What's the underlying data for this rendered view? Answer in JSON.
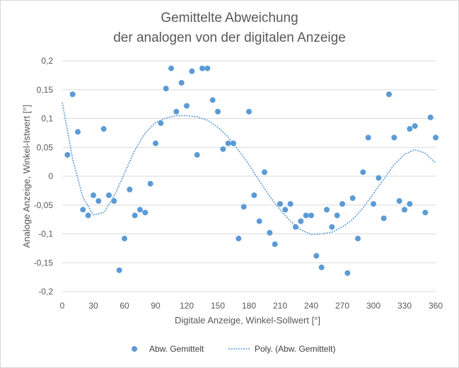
{
  "chart_data": {
    "type": "scatter",
    "title_line1": "Gemittelte Abweichung",
    "title_line2": "der analogen von der digitalen Anzeige",
    "xlabel": "Digitale Anzeige, Winkel-Sollwert [°]",
    "ylabel": "Analoge Anzeige, Winkel-Istwert [°]",
    "xlim": [
      0,
      360
    ],
    "ylim": [
      -0.2,
      0.2
    ],
    "xticks": [
      "0",
      "30",
      "60",
      "90",
      "120",
      "150",
      "180",
      "210",
      "240",
      "270",
      "300",
      "330",
      "360"
    ],
    "yticks": [
      "0,2",
      "0,15",
      "0,1",
      "0,05",
      "0",
      "-0,05",
      "-0,1",
      "-0,15",
      "-0,2"
    ],
    "grid": "horizontal",
    "legend_position": "bottom",
    "colors": {
      "points": "#5b9bd5",
      "trend": "#5b9bd5",
      "grid": "#d9d9d9",
      "text": "#595959"
    },
    "series": [
      {
        "name": "Abw. Gemittelt",
        "kind": "points",
        "points": [
          [
            5,
            0.037
          ],
          [
            10,
            0.142
          ],
          [
            15,
            0.077
          ],
          [
            20,
            -0.058
          ],
          [
            25,
            -0.068
          ],
          [
            30,
            -0.033
          ],
          [
            35,
            -0.043
          ],
          [
            40,
            0.082
          ],
          [
            45,
            -0.033
          ],
          [
            50,
            -0.043
          ],
          [
            55,
            -0.163
          ],
          [
            60,
            -0.108
          ],
          [
            65,
            -0.023
          ],
          [
            70,
            -0.068
          ],
          [
            75,
            -0.058
          ],
          [
            80,
            -0.063
          ],
          [
            85,
            -0.013
          ],
          [
            90,
            0.057
          ],
          [
            95,
            0.092
          ],
          [
            100,
            0.152
          ],
          [
            105,
            0.187
          ],
          [
            110,
            0.112
          ],
          [
            115,
            0.162
          ],
          [
            120,
            0.122
          ],
          [
            125,
            0.182
          ],
          [
            130,
            0.037
          ],
          [
            135,
            0.187
          ],
          [
            140,
            0.187
          ],
          [
            145,
            0.132
          ],
          [
            150,
            0.112
          ],
          [
            155,
            0.047
          ],
          [
            160,
            0.057
          ],
          [
            165,
            0.057
          ],
          [
            170,
            -0.108
          ],
          [
            175,
            -0.053
          ],
          [
            180,
            0.112
          ],
          [
            185,
            -0.033
          ],
          [
            190,
            -0.078
          ],
          [
            195,
            0.007
          ],
          [
            200,
            -0.098
          ],
          [
            205,
            -0.118
          ],
          [
            210,
            -0.048
          ],
          [
            215,
            -0.058
          ],
          [
            220,
            -0.048
          ],
          [
            225,
            -0.088
          ],
          [
            230,
            -0.078
          ],
          [
            235,
            -0.068
          ],
          [
            240,
            -0.068
          ],
          [
            245,
            -0.138
          ],
          [
            250,
            -0.158
          ],
          [
            255,
            -0.058
          ],
          [
            260,
            -0.088
          ],
          [
            265,
            -0.068
          ],
          [
            270,
            -0.048
          ],
          [
            275,
            -0.168
          ],
          [
            280,
            -0.038
          ],
          [
            285,
            -0.108
          ],
          [
            290,
            0.007
          ],
          [
            295,
            0.067
          ],
          [
            300,
            -0.048
          ],
          [
            305,
            -0.003
          ],
          [
            310,
            -0.073
          ],
          [
            315,
            0.142
          ],
          [
            320,
            0.067
          ],
          [
            325,
            -0.043
          ],
          [
            330,
            -0.058
          ],
          [
            335,
            0.082
          ],
          [
            335,
            -0.048
          ],
          [
            340,
            0.087
          ],
          [
            350,
            -0.063
          ],
          [
            355,
            0.102
          ],
          [
            360,
            0.067
          ]
        ]
      },
      {
        "name": "Poly. (Abw. Gemittelt)",
        "kind": "trendline",
        "points": [
          [
            0,
            0.128
          ],
          [
            10,
            0.03
          ],
          [
            20,
            -0.037
          ],
          [
            30,
            -0.067
          ],
          [
            40,
            -0.063
          ],
          [
            50,
            -0.035
          ],
          [
            60,
            0.005
          ],
          [
            70,
            0.045
          ],
          [
            80,
            0.075
          ],
          [
            90,
            0.093
          ],
          [
            100,
            0.101
          ],
          [
            110,
            0.105
          ],
          [
            120,
            0.105
          ],
          [
            130,
            0.103
          ],
          [
            140,
            0.097
          ],
          [
            150,
            0.085
          ],
          [
            160,
            0.068
          ],
          [
            170,
            0.045
          ],
          [
            180,
            0.02
          ],
          [
            190,
            -0.008
          ],
          [
            200,
            -0.035
          ],
          [
            210,
            -0.058
          ],
          [
            220,
            -0.078
          ],
          [
            230,
            -0.093
          ],
          [
            240,
            -0.101
          ],
          [
            250,
            -0.1
          ],
          [
            260,
            -0.097
          ],
          [
            270,
            -0.088
          ],
          [
            280,
            -0.075
          ],
          [
            290,
            -0.055
          ],
          [
            300,
            -0.03
          ],
          [
            310,
            -0.005
          ],
          [
            320,
            0.02
          ],
          [
            330,
            0.038
          ],
          [
            340,
            0.046
          ],
          [
            350,
            0.04
          ],
          [
            360,
            0.023
          ]
        ]
      }
    ]
  }
}
